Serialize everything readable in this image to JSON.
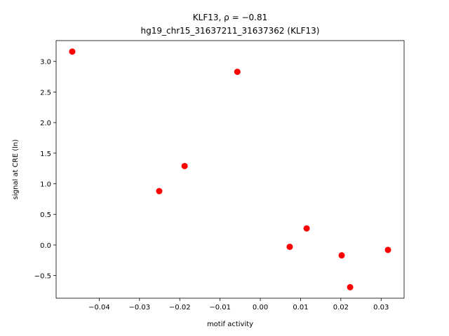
{
  "chart_data": {
    "type": "scatter",
    "title": "KLF13, ρ = −0.81",
    "subtitle": "hg19_chr15_31637211_31637362 (KLF13)",
    "x_label": "motif activity",
    "y_label": "signal at CRE (ln)",
    "color": "#ff0000",
    "x": [
      -0.0467,
      -0.0057,
      -0.0188,
      -0.0251,
      0.0073,
      0.0115,
      0.0202,
      0.0223,
      0.0317
    ],
    "values": [
      3.16,
      2.83,
      1.29,
      0.88,
      -0.03,
      0.27,
      -0.17,
      -0.69,
      -0.08
    ],
    "xlim": [
      -0.0507,
      0.0357
    ],
    "ylim": [
      -0.87,
      3.34
    ],
    "xticks": [
      {
        "value": -0.04,
        "label": "−0.04"
      },
      {
        "value": -0.03,
        "label": "−0.03"
      },
      {
        "value": -0.02,
        "label": "−0.02"
      },
      {
        "value": -0.01,
        "label": "−0.01"
      },
      {
        "value": 0,
        "label": "0.00"
      },
      {
        "value": 0.01,
        "label": "0.01"
      },
      {
        "value": 0.02,
        "label": "0.02"
      },
      {
        "value": 0.03,
        "label": "0.03"
      }
    ],
    "yticks": [
      {
        "value": -0.5,
        "label": "−0.5"
      },
      {
        "value": 0,
        "label": "0.0"
      },
      {
        "value": 0.5,
        "label": "0.5"
      },
      {
        "value": 1,
        "label": "1.0"
      },
      {
        "value": 1.5,
        "label": "1.5"
      },
      {
        "value": 2,
        "label": "2.0"
      },
      {
        "value": 2.5,
        "label": "2.5"
      },
      {
        "value": 3,
        "label": "3.0"
      }
    ]
  }
}
